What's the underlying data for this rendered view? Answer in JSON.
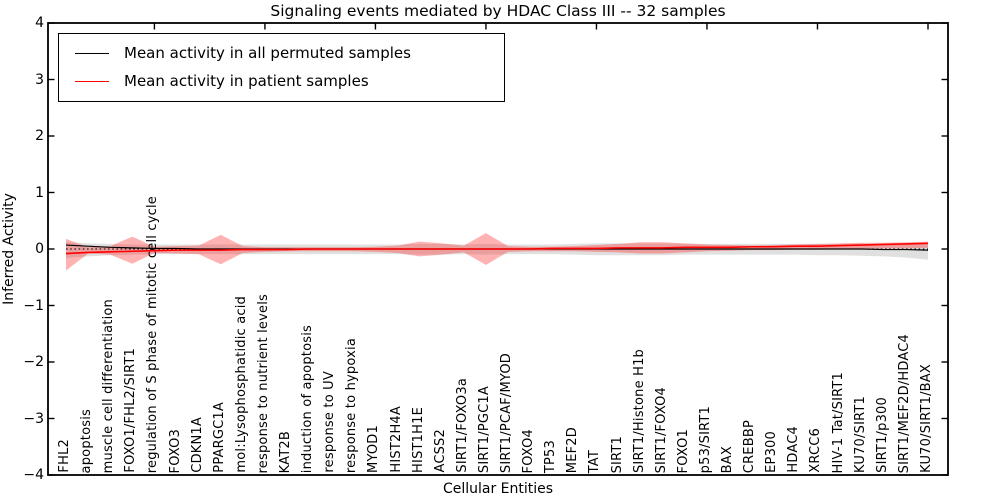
{
  "chart_data": {
    "type": "line",
    "title": "Signaling events mediated by HDAC Class III -- 32 samples",
    "xlabel": "Cellular Entities",
    "ylabel": "Inferred Activity",
    "ylim": [
      -4,
      4
    ],
    "yticks": [
      4,
      3,
      2,
      1,
      0,
      -1,
      -2,
      -3,
      -4
    ],
    "ytick_labels": [
      "4",
      "3",
      "2",
      "1",
      "0",
      "−1",
      "−2",
      "−3",
      "−4"
    ],
    "grid": false,
    "legend_position": "upper left",
    "legend": [
      {
        "label": "Mean activity in all permuted samples",
        "color": "#000000"
      },
      {
        "label": "Mean activity in patient samples",
        "color": "#ff0000"
      }
    ],
    "categories": [
      "FHL2",
      "apoptosis",
      "muscle cell differentiation",
      "FOXO1/FHL2/SIRT1",
      "regulation of S phase of mitotic cell cycle",
      "FOXO3",
      "CDKN1A",
      "PPARGC1A",
      "mol:Lysophosphatidic acid",
      "response to nutrient levels",
      "KAT2B",
      "induction of apoptosis",
      "response to UV",
      "response to hypoxia",
      "MYOD1",
      "HIST2H4A",
      "HIST1H1E",
      "ACSS2",
      "SIRT1/FOXO3a",
      "SIRT1/PGC1A",
      "SIRT1/PCAF/MYOD",
      "FOXO4",
      "TP53",
      "MEF2D",
      "TAT",
      "SIRT1",
      "SIRT1/Histone H1b",
      "SIRT1/FOXO4",
      "FOXO1",
      "p53/SIRT1",
      "BAX",
      "CREBBP",
      "EP300",
      "HDAC4",
      "XRCC6",
      "HIV-1 Tat/SIRT1",
      "KU70/SIRT1",
      "SIRT1/p300",
      "SIRT1/MEF2D/HDAC4",
      "KU70/SIRT1/BAX"
    ],
    "series": [
      {
        "name": "permuted_mean",
        "values": [
          0.07,
          0.05,
          0.03,
          0.02,
          0.01,
          0.01,
          0,
          0,
          0,
          0,
          0,
          0,
          0,
          0,
          0,
          0,
          0,
          0,
          0,
          0,
          0,
          0,
          0,
          0,
          0,
          0,
          0,
          0,
          0,
          0,
          0,
          0,
          0,
          0,
          0,
          0,
          0,
          -0.01,
          -0.01,
          -0.02
        ]
      },
      {
        "name": "patient_mean",
        "values": [
          -0.08,
          -0.06,
          -0.05,
          -0.04,
          -0.03,
          -0.02,
          -0.02,
          -0.02,
          -0.01,
          -0.01,
          -0.01,
          0,
          0,
          0,
          0,
          0,
          0,
          0,
          0,
          0,
          0,
          0,
          0.01,
          0.01,
          0.01,
          0.02,
          0.02,
          0.02,
          0.03,
          0.03,
          0.03,
          0.04,
          0.04,
          0.05,
          0.05,
          0.06,
          0.07,
          0.08,
          0.09,
          0.1
        ]
      },
      {
        "name": "permuted_band_upper",
        "values": [
          0.12,
          0.1,
          0.09,
          0.08,
          0.08,
          0.08,
          0.08,
          0.08,
          0.08,
          0.08,
          0.08,
          0.08,
          0.08,
          0.08,
          0.08,
          0.08,
          0.09,
          0.09,
          0.08,
          0.09,
          0.08,
          0.08,
          0.08,
          0.09,
          0.1,
          0.1,
          0.1,
          0.1,
          0.09,
          0.09,
          0.09,
          0.09,
          0.09,
          0.09,
          0.09,
          0.09,
          0.09,
          0.09,
          0.1,
          0.1
        ]
      },
      {
        "name": "permuted_band_lower",
        "values": [
          -0.16,
          -0.13,
          -0.11,
          -0.1,
          -0.09,
          -0.09,
          -0.09,
          -0.09,
          -0.09,
          -0.09,
          -0.09,
          -0.09,
          -0.09,
          -0.09,
          -0.09,
          -0.09,
          -0.1,
          -0.1,
          -0.09,
          -0.1,
          -0.09,
          -0.09,
          -0.09,
          -0.1,
          -0.11,
          -0.11,
          -0.11,
          -0.11,
          -0.1,
          -0.1,
          -0.1,
          -0.1,
          -0.1,
          -0.1,
          -0.11,
          -0.11,
          -0.12,
          -0.13,
          -0.15,
          -0.19
        ]
      },
      {
        "name": "patient_band_upper",
        "values": [
          0.18,
          0.03,
          0.05,
          0.22,
          0.04,
          0.05,
          0.06,
          0.25,
          0.05,
          0.03,
          0.03,
          0.03,
          0.03,
          0.03,
          0.04,
          0.06,
          0.13,
          0.1,
          0.06,
          0.28,
          0.05,
          0.04,
          0.04,
          0.05,
          0.07,
          0.09,
          0.12,
          0.12,
          0.1,
          0.08,
          0.07,
          0.06,
          0.07,
          0.08,
          0.09,
          0.1,
          0.11,
          0.11,
          0.12,
          0.13
        ]
      },
      {
        "name": "patient_band_lower",
        "values": [
          -0.38,
          -0.08,
          -0.1,
          -0.26,
          -0.07,
          -0.08,
          -0.09,
          -0.27,
          -0.07,
          -0.05,
          -0.04,
          -0.04,
          -0.04,
          -0.04,
          -0.05,
          -0.07,
          -0.13,
          -0.1,
          -0.06,
          -0.28,
          -0.05,
          -0.04,
          -0.04,
          -0.04,
          -0.05,
          -0.06,
          -0.08,
          -0.08,
          -0.06,
          -0.04,
          -0.03,
          -0.02,
          -0.02,
          -0.01,
          -0.01,
          0,
          0,
          0.01,
          0.01,
          0.02
        ]
      }
    ],
    "baseline": 0,
    "colors": {
      "permuted_line": "#000000",
      "patient_line": "#ff0000",
      "permuted_band": "#999999",
      "patient_band": "#ff2222",
      "axis": "#000000"
    }
  }
}
